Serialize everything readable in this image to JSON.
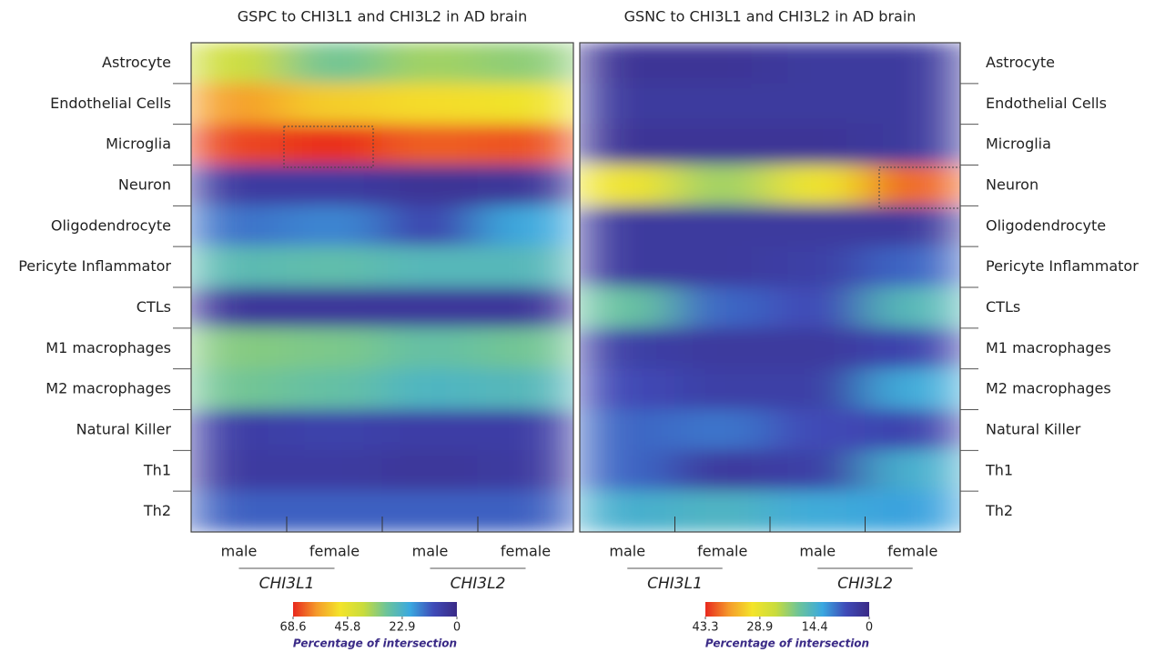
{
  "chart_data": [
    {
      "type": "heatmap",
      "title": "GSPC to CHI3L1 and CHI3L2 in AD brain",
      "rows": [
        "Astrocyte",
        "Endothelial Cells",
        "Microglia",
        "Neuron",
        "Oligodendrocyte",
        "Pericyte Inflammator",
        "CTLs",
        "M1 macrophages",
        "M2 macrophages",
        "Natural Killer",
        "Th1",
        "Th2"
      ],
      "columns": [
        "male",
        "female",
        "male",
        "female"
      ],
      "groups": [
        "CHI3L1",
        "CHI3L2"
      ],
      "row_label_side": "left",
      "values": [
        [
          40,
          30,
          35,
          33
        ],
        [
          58,
          52,
          50,
          48
        ],
        [
          66,
          68,
          64,
          65
        ],
        [
          5,
          5,
          3,
          4
        ],
        [
          14,
          16,
          8,
          20
        ],
        [
          26,
          27,
          25,
          25
        ],
        [
          4,
          4,
          4,
          4
        ],
        [
          32,
          31,
          28,
          30
        ],
        [
          30,
          28,
          24,
          25
        ],
        [
          6,
          7,
          6,
          6
        ],
        [
          5,
          5,
          4,
          5
        ],
        [
          12,
          12,
          12,
          12
        ]
      ],
      "zlim": [
        0,
        68.6
      ],
      "colorbar_ticks": [
        68.6,
        45.8,
        22.9,
        0
      ],
      "colorbar_label": "Percentage of intersection",
      "colormap": [
        "#3a2a86",
        "#3f4bb8",
        "#3aa8e0",
        "#6cc49a",
        "#c9dc3c",
        "#f4e42a",
        "#f59a2b",
        "#e8281e"
      ]
    },
    {
      "type": "heatmap",
      "title": "GSNC to CHI3L1 and CHI3L2 in AD brain",
      "rows": [
        "Astrocyte",
        "Endothelial Cells",
        "Microglia",
        "Neuron",
        "Oligodendrocyte",
        "Pericyte Inflammator",
        "CTLs",
        "M1 macrophages",
        "M2 macrophages",
        "Natural Killer",
        "Th1",
        "Th2"
      ],
      "columns": [
        "male",
        "female",
        "male",
        "female"
      ],
      "groups": [
        "CHI3L1",
        "CHI3L2"
      ],
      "row_label_side": "right",
      "values": [
        [
          2,
          2,
          3,
          3
        ],
        [
          3,
          3,
          3,
          3
        ],
        [
          2,
          2,
          2,
          3
        ],
        [
          30,
          22,
          30,
          40
        ],
        [
          3,
          3,
          3,
          3
        ],
        [
          3,
          3,
          4,
          8
        ],
        [
          18,
          8,
          6,
          16
        ],
        [
          4,
          3,
          3,
          5
        ],
        [
          6,
          4,
          4,
          13
        ],
        [
          8,
          9,
          6,
          5
        ],
        [
          8,
          3,
          4,
          14
        ],
        [
          14,
          15,
          13,
          12
        ]
      ],
      "zlim": [
        0,
        43.3
      ],
      "colorbar_ticks": [
        43.3,
        28.9,
        14.4,
        0
      ],
      "colorbar_label": "Percentage of intersection",
      "colormap": [
        "#3a2a86",
        "#3f4bb8",
        "#3aa8e0",
        "#6cc49a",
        "#c9dc3c",
        "#f4e42a",
        "#f59a2b",
        "#e8281e"
      ]
    }
  ]
}
